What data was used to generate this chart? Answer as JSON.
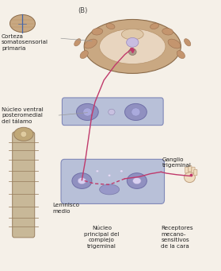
{
  "bg_color": "#f5f0e8",
  "title_label": "(B)",
  "labels": {
    "corteza": "Corteza\nsomatosensorial\nprimaria",
    "nucleo_ventral": "Núcleo ventral\nposteromedial\ndel tálamo",
    "ganglio": "Ganglio\ntrigeminal",
    "lemnisco": "Lemnisco\nmedio",
    "nucleo_principal": "Núcleo\nprincipal del\ncomplejo\ntrigeminal",
    "receptores": "Receptores\nmecano-\nsensitivos\nde la cara"
  },
  "pathway_color": "#c0396b",
  "brain_color": "#c9a882",
  "thalamus_color": "#9090c0",
  "section_bg": "#b0b8d8"
}
